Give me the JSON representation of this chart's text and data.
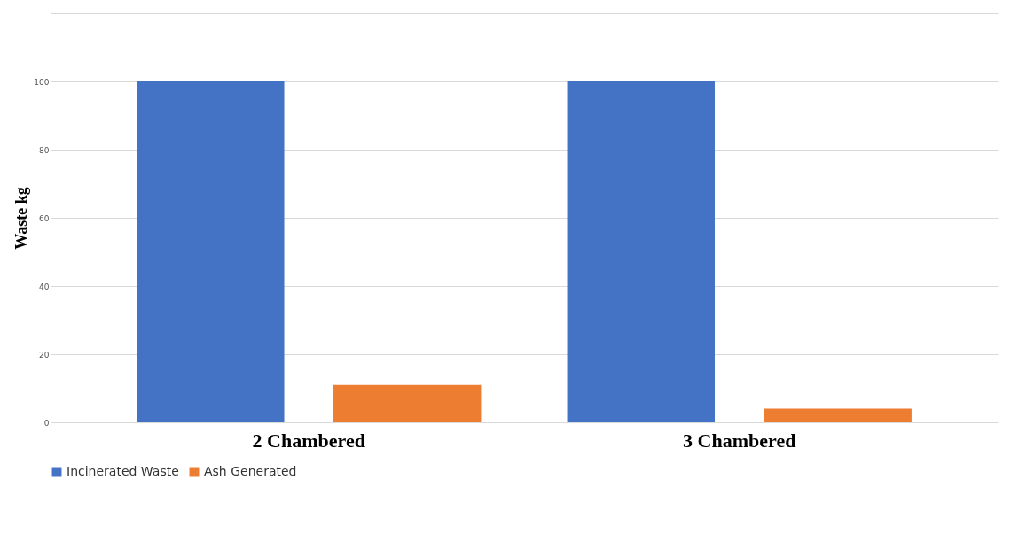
{
  "chart_data": {
    "type": "bar",
    "ylabel": "Waste kg",
    "categories": [
      "2 Chambered",
      "3 Chambered"
    ],
    "series": [
      {
        "name": "Incinerated Waste",
        "color": "#4472c4",
        "values": [
          100,
          100
        ]
      },
      {
        "name": "Ash Generated",
        "color": "#ed7d31",
        "values": [
          11,
          4
        ]
      }
    ],
    "ylim": [
      0,
      120
    ],
    "yticks": [
      0,
      20,
      40,
      60,
      80,
      100,
      {
        "value": 120,
        "label": null
      }
    ],
    "grid": "y",
    "legend": "bottom"
  }
}
